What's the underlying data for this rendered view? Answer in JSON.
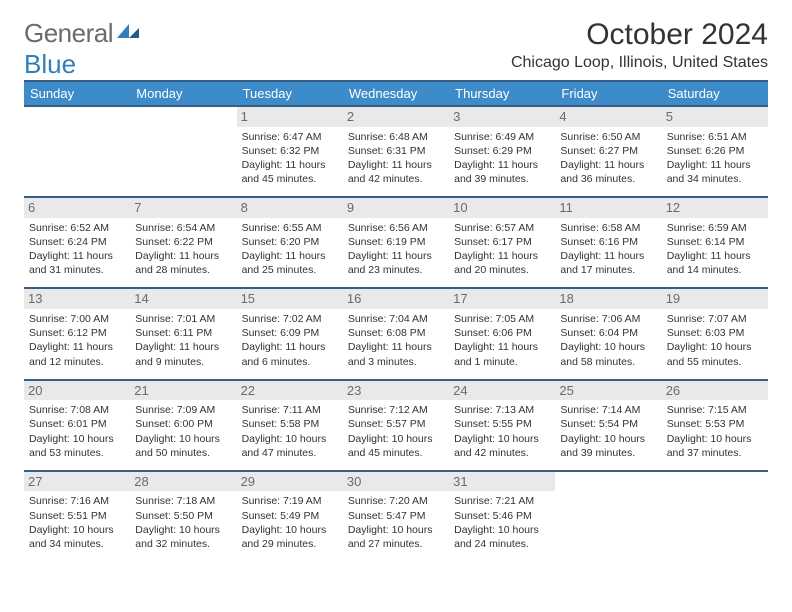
{
  "logo": {
    "text_gray": "General",
    "text_blue": "Blue"
  },
  "title": "October 2024",
  "location": "Chicago Loop, Illinois, United States",
  "colors": {
    "header_bg": "#3d8bc8",
    "header_border": "#355f85",
    "daynum_bg": "#e9e9e9",
    "text": "#333333",
    "gray_text": "#6b6b6b"
  },
  "weekdays": [
    "Sunday",
    "Monday",
    "Tuesday",
    "Wednesday",
    "Thursday",
    "Friday",
    "Saturday"
  ],
  "weeks": [
    [
      null,
      null,
      {
        "n": "1",
        "sr": "Sunrise: 6:47 AM",
        "ss": "Sunset: 6:32 PM",
        "d1": "Daylight: 11 hours",
        "d2": "and 45 minutes."
      },
      {
        "n": "2",
        "sr": "Sunrise: 6:48 AM",
        "ss": "Sunset: 6:31 PM",
        "d1": "Daylight: 11 hours",
        "d2": "and 42 minutes."
      },
      {
        "n": "3",
        "sr": "Sunrise: 6:49 AM",
        "ss": "Sunset: 6:29 PM",
        "d1": "Daylight: 11 hours",
        "d2": "and 39 minutes."
      },
      {
        "n": "4",
        "sr": "Sunrise: 6:50 AM",
        "ss": "Sunset: 6:27 PM",
        "d1": "Daylight: 11 hours",
        "d2": "and 36 minutes."
      },
      {
        "n": "5",
        "sr": "Sunrise: 6:51 AM",
        "ss": "Sunset: 6:26 PM",
        "d1": "Daylight: 11 hours",
        "d2": "and 34 minutes."
      }
    ],
    [
      {
        "n": "6",
        "sr": "Sunrise: 6:52 AM",
        "ss": "Sunset: 6:24 PM",
        "d1": "Daylight: 11 hours",
        "d2": "and 31 minutes."
      },
      {
        "n": "7",
        "sr": "Sunrise: 6:54 AM",
        "ss": "Sunset: 6:22 PM",
        "d1": "Daylight: 11 hours",
        "d2": "and 28 minutes."
      },
      {
        "n": "8",
        "sr": "Sunrise: 6:55 AM",
        "ss": "Sunset: 6:20 PM",
        "d1": "Daylight: 11 hours",
        "d2": "and 25 minutes."
      },
      {
        "n": "9",
        "sr": "Sunrise: 6:56 AM",
        "ss": "Sunset: 6:19 PM",
        "d1": "Daylight: 11 hours",
        "d2": "and 23 minutes."
      },
      {
        "n": "10",
        "sr": "Sunrise: 6:57 AM",
        "ss": "Sunset: 6:17 PM",
        "d1": "Daylight: 11 hours",
        "d2": "and 20 minutes."
      },
      {
        "n": "11",
        "sr": "Sunrise: 6:58 AM",
        "ss": "Sunset: 6:16 PM",
        "d1": "Daylight: 11 hours",
        "d2": "and 17 minutes."
      },
      {
        "n": "12",
        "sr": "Sunrise: 6:59 AM",
        "ss": "Sunset: 6:14 PM",
        "d1": "Daylight: 11 hours",
        "d2": "and 14 minutes."
      }
    ],
    [
      {
        "n": "13",
        "sr": "Sunrise: 7:00 AM",
        "ss": "Sunset: 6:12 PM",
        "d1": "Daylight: 11 hours",
        "d2": "and 12 minutes."
      },
      {
        "n": "14",
        "sr": "Sunrise: 7:01 AM",
        "ss": "Sunset: 6:11 PM",
        "d1": "Daylight: 11 hours",
        "d2": "and 9 minutes."
      },
      {
        "n": "15",
        "sr": "Sunrise: 7:02 AM",
        "ss": "Sunset: 6:09 PM",
        "d1": "Daylight: 11 hours",
        "d2": "and 6 minutes."
      },
      {
        "n": "16",
        "sr": "Sunrise: 7:04 AM",
        "ss": "Sunset: 6:08 PM",
        "d1": "Daylight: 11 hours",
        "d2": "and 3 minutes."
      },
      {
        "n": "17",
        "sr": "Sunrise: 7:05 AM",
        "ss": "Sunset: 6:06 PM",
        "d1": "Daylight: 11 hours",
        "d2": "and 1 minute."
      },
      {
        "n": "18",
        "sr": "Sunrise: 7:06 AM",
        "ss": "Sunset: 6:04 PM",
        "d1": "Daylight: 10 hours",
        "d2": "and 58 minutes."
      },
      {
        "n": "19",
        "sr": "Sunrise: 7:07 AM",
        "ss": "Sunset: 6:03 PM",
        "d1": "Daylight: 10 hours",
        "d2": "and 55 minutes."
      }
    ],
    [
      {
        "n": "20",
        "sr": "Sunrise: 7:08 AM",
        "ss": "Sunset: 6:01 PM",
        "d1": "Daylight: 10 hours",
        "d2": "and 53 minutes."
      },
      {
        "n": "21",
        "sr": "Sunrise: 7:09 AM",
        "ss": "Sunset: 6:00 PM",
        "d1": "Daylight: 10 hours",
        "d2": "and 50 minutes."
      },
      {
        "n": "22",
        "sr": "Sunrise: 7:11 AM",
        "ss": "Sunset: 5:58 PM",
        "d1": "Daylight: 10 hours",
        "d2": "and 47 minutes."
      },
      {
        "n": "23",
        "sr": "Sunrise: 7:12 AM",
        "ss": "Sunset: 5:57 PM",
        "d1": "Daylight: 10 hours",
        "d2": "and 45 minutes."
      },
      {
        "n": "24",
        "sr": "Sunrise: 7:13 AM",
        "ss": "Sunset: 5:55 PM",
        "d1": "Daylight: 10 hours",
        "d2": "and 42 minutes."
      },
      {
        "n": "25",
        "sr": "Sunrise: 7:14 AM",
        "ss": "Sunset: 5:54 PM",
        "d1": "Daylight: 10 hours",
        "d2": "and 39 minutes."
      },
      {
        "n": "26",
        "sr": "Sunrise: 7:15 AM",
        "ss": "Sunset: 5:53 PM",
        "d1": "Daylight: 10 hours",
        "d2": "and 37 minutes."
      }
    ],
    [
      {
        "n": "27",
        "sr": "Sunrise: 7:16 AM",
        "ss": "Sunset: 5:51 PM",
        "d1": "Daylight: 10 hours",
        "d2": "and 34 minutes."
      },
      {
        "n": "28",
        "sr": "Sunrise: 7:18 AM",
        "ss": "Sunset: 5:50 PM",
        "d1": "Daylight: 10 hours",
        "d2": "and 32 minutes."
      },
      {
        "n": "29",
        "sr": "Sunrise: 7:19 AM",
        "ss": "Sunset: 5:49 PM",
        "d1": "Daylight: 10 hours",
        "d2": "and 29 minutes."
      },
      {
        "n": "30",
        "sr": "Sunrise: 7:20 AM",
        "ss": "Sunset: 5:47 PM",
        "d1": "Daylight: 10 hours",
        "d2": "and 27 minutes."
      },
      {
        "n": "31",
        "sr": "Sunrise: 7:21 AM",
        "ss": "Sunset: 5:46 PM",
        "d1": "Daylight: 10 hours",
        "d2": "and 24 minutes."
      },
      null,
      null
    ]
  ]
}
